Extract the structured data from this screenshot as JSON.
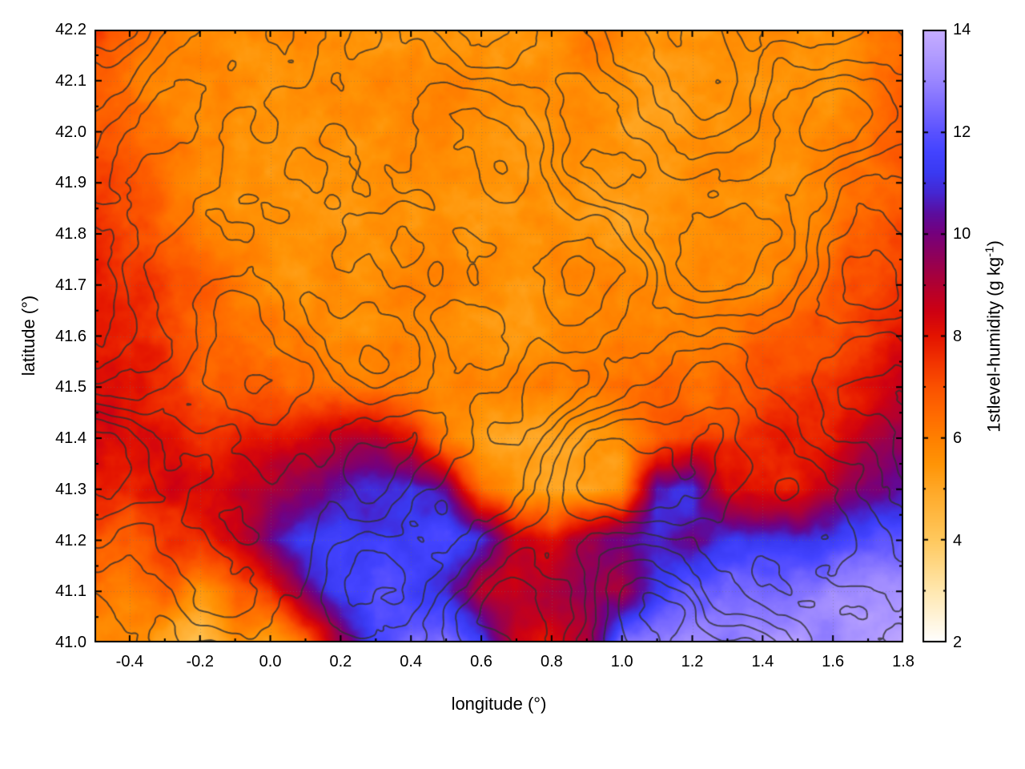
{
  "figure": {
    "background": "#ffffff",
    "cblabel_main": "1stlevel-humidity (g kg",
    "cblabel_sup": "-1",
    "cblabel_close": ")"
  },
  "chart_data": {
    "type": "heatmap",
    "title": "",
    "xlabel": "longitude (°)",
    "ylabel": "latitude (°)",
    "colorbar_label": "1stlevel-humidity (g kg^-1)",
    "units": "g kg^-1",
    "x_range": [
      -0.5,
      1.8
    ],
    "y_range": [
      41.0,
      42.2
    ],
    "xticks": [
      -0.4,
      -0.2,
      0.0,
      0.2,
      0.4,
      0.6,
      0.8,
      1.0,
      1.2,
      1.4,
      1.6,
      1.8
    ],
    "yticks": [
      41.0,
      41.1,
      41.2,
      41.3,
      41.4,
      41.5,
      41.6,
      41.7,
      41.8,
      41.9,
      42.0,
      42.1,
      42.2
    ],
    "colorbar_range": [
      2,
      14
    ],
    "colorbar_ticks": [
      2,
      4,
      6,
      8,
      10,
      12,
      14
    ],
    "grid": true,
    "contour_color": "rgba(48,48,48,0.78)",
    "palette": [
      [
        2.0,
        "#ffffff"
      ],
      [
        3.0,
        "#ffe8b0"
      ],
      [
        4.0,
        "#ffc95e"
      ],
      [
        5.0,
        "#ffa826"
      ],
      [
        5.5,
        "#ff9406"
      ],
      [
        6.0,
        "#ff8000"
      ],
      [
        6.5,
        "#ff6900"
      ],
      [
        7.0,
        "#fb5200"
      ],
      [
        7.5,
        "#f23300"
      ],
      [
        8.0,
        "#e41400"
      ],
      [
        8.5,
        "#cd0014"
      ],
      [
        9.0,
        "#b10032"
      ],
      [
        9.5,
        "#930056"
      ],
      [
        10.0,
        "#76007c"
      ],
      [
        10.4,
        "#5c0d9e"
      ],
      [
        10.8,
        "#4527d2"
      ],
      [
        11.2,
        "#3a3af2"
      ],
      [
        11.6,
        "#4343ff"
      ],
      [
        12.0,
        "#5a52ff"
      ],
      [
        12.5,
        "#7c6cff"
      ],
      [
        13.0,
        "#9a86ff"
      ],
      [
        13.5,
        "#b29cff"
      ],
      [
        14.0,
        "#c7aeff"
      ]
    ],
    "lon": [
      -0.5,
      -0.4,
      -0.3,
      -0.2,
      -0.1,
      0.0,
      0.1,
      0.2,
      0.3,
      0.4,
      0.5,
      0.6,
      0.7,
      0.8,
      0.9,
      1.0,
      1.1,
      1.2,
      1.3,
      1.4,
      1.5,
      1.6,
      1.7,
      1.8
    ],
    "lat": [
      42.2,
      42.1,
      42.0,
      41.9,
      41.8,
      41.7,
      41.6,
      41.5,
      41.4,
      41.3,
      41.2,
      41.1,
      41.0
    ],
    "values": [
      [
        7.0,
        6.4,
        6.0,
        5.8,
        5.6,
        5.6,
        5.8,
        5.6,
        5.5,
        5.6,
        5.8,
        5.6,
        5.5,
        5.6,
        5.8,
        5.6,
        5.5,
        5.6,
        5.8,
        5.6,
        5.5,
        5.8,
        6.2,
        6.8
      ],
      [
        6.8,
        6.2,
        5.8,
        5.6,
        5.5,
        5.5,
        5.6,
        5.5,
        5.4,
        5.5,
        5.6,
        5.5,
        5.4,
        5.5,
        5.6,
        5.5,
        5.4,
        5.5,
        5.6,
        5.5,
        5.5,
        5.6,
        6.0,
        6.5
      ],
      [
        7.2,
        6.5,
        6.0,
        5.6,
        5.5,
        5.5,
        5.5,
        5.4,
        5.4,
        5.5,
        5.5,
        5.4,
        5.4,
        5.5,
        5.5,
        5.4,
        5.4,
        5.5,
        5.5,
        5.5,
        5.6,
        5.8,
        6.2,
        6.8
      ],
      [
        7.5,
        7.0,
        6.2,
        5.8,
        5.6,
        5.5,
        5.6,
        5.5,
        5.5,
        5.5,
        5.6,
        5.5,
        5.5,
        5.6,
        5.5,
        5.5,
        5.5,
        5.6,
        5.6,
        5.5,
        5.6,
        6.0,
        6.5,
        7.0
      ],
      [
        7.8,
        7.2,
        6.5,
        6.0,
        5.8,
        5.6,
        5.6,
        5.5,
        5.5,
        5.6,
        5.6,
        5.5,
        5.5,
        5.6,
        5.6,
        5.5,
        5.5,
        5.6,
        5.6,
        5.6,
        5.8,
        6.2,
        6.8,
        7.2
      ],
      [
        7.8,
        7.5,
        7.0,
        6.5,
        6.0,
        5.8,
        5.6,
        5.6,
        5.5,
        5.6,
        5.6,
        5.5,
        5.5,
        5.6,
        5.6,
        5.5,
        5.6,
        5.6,
        5.6,
        5.8,
        6.0,
        6.5,
        7.0,
        7.5
      ],
      [
        8.0,
        7.8,
        7.2,
        6.8,
        6.5,
        6.2,
        6.0,
        5.8,
        5.6,
        5.6,
        5.8,
        5.6,
        5.6,
        5.8,
        5.8,
        5.6,
        5.8,
        6.0,
        6.2,
        6.5,
        6.8,
        7.0,
        7.5,
        8.0
      ],
      [
        8.2,
        8.0,
        7.8,
        7.2,
        7.0,
        6.8,
        6.5,
        6.5,
        6.2,
        6.0,
        6.0,
        6.0,
        6.2,
        6.2,
        6.0,
        6.2,
        6.5,
        6.5,
        6.8,
        7.0,
        7.2,
        7.5,
        8.0,
        8.5
      ],
      [
        8.5,
        8.2,
        8.0,
        7.8,
        7.8,
        8.0,
        8.2,
        8.8,
        9.2,
        8.0,
        6.2,
        5.3,
        5.0,
        5.0,
        5.2,
        5.6,
        6.8,
        7.2,
        7.2,
        7.5,
        7.8,
        8.0,
        8.8,
        9.5
      ],
      [
        8.0,
        7.8,
        8.2,
        8.5,
        8.8,
        9.0,
        9.5,
        10.5,
        11.0,
        11.2,
        10.0,
        6.2,
        5.2,
        5.0,
        5.2,
        5.6,
        10.5,
        11.0,
        8.0,
        7.5,
        7.8,
        9.0,
        10.0,
        10.5
      ],
      [
        7.0,
        6.8,
        7.5,
        7.8,
        8.5,
        10.5,
        11.5,
        11.8,
        11.5,
        11.5,
        11.8,
        11.0,
        8.5,
        8.0,
        9.5,
        10.0,
        10.5,
        10.0,
        11.0,
        11.2,
        11.0,
        11.5,
        12.0,
        12.5
      ],
      [
        6.5,
        6.0,
        6.5,
        5.5,
        6.5,
        7.5,
        10.0,
        11.5,
        11.8,
        11.5,
        11.0,
        9.0,
        8.5,
        9.0,
        9.5,
        9.0,
        11.5,
        12.0,
        12.2,
        12.5,
        12.5,
        12.8,
        13.0,
        13.0
      ],
      [
        5.5,
        6.0,
        5.0,
        4.0,
        5.5,
        5.0,
        6.5,
        9.0,
        11.5,
        12.0,
        12.5,
        11.0,
        8.5,
        8.0,
        9.0,
        12.5,
        13.0,
        13.2,
        13.2,
        13.3,
        13.4,
        13.4,
        13.5,
        13.5
      ]
    ]
  }
}
